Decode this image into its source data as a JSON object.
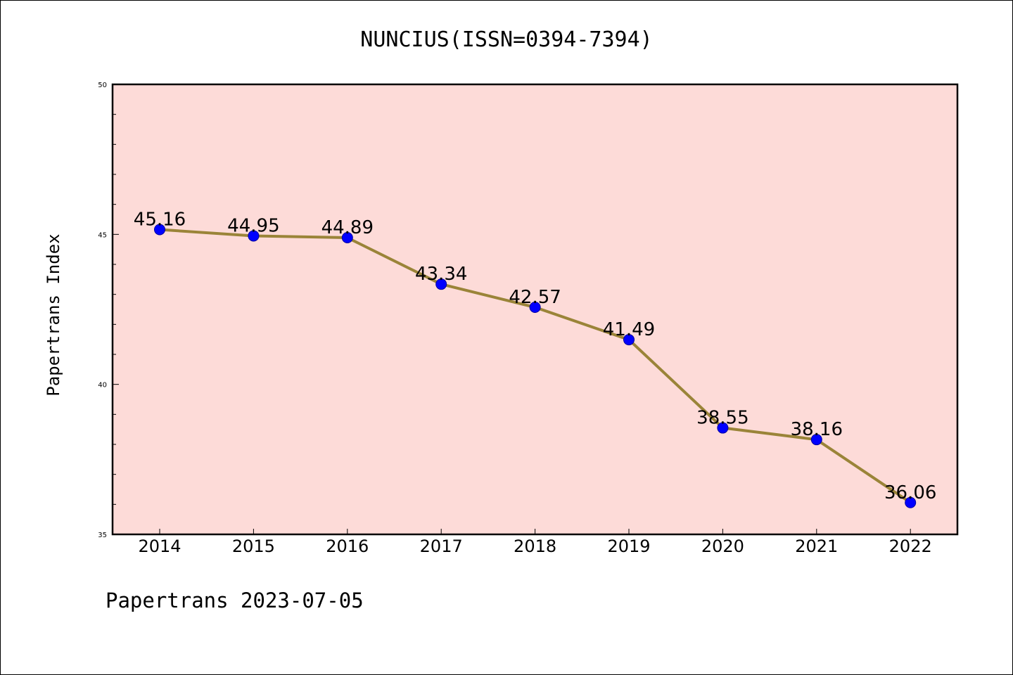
{
  "chart_data": {
    "type": "line",
    "title": "NUNCIUS(ISSN=0394-7394)",
    "xlabel": "",
    "ylabel": "Papertrans Index",
    "categories": [
      "2014",
      "2015",
      "2016",
      "2017",
      "2018",
      "2019",
      "2020",
      "2021",
      "2022"
    ],
    "series": [
      {
        "values": [
          45.16,
          44.95,
          44.89,
          43.34,
          42.57,
          41.49,
          38.55,
          38.16,
          36.06
        ]
      }
    ],
    "data_labels": [
      "45.16",
      "44.95",
      "44.89",
      "43.34",
      "42.57",
      "41.49",
      "38.55",
      "38.16",
      "36.06"
    ],
    "ylim": [
      35,
      50
    ],
    "yticks": [
      "35",
      "40",
      "45",
      "50"
    ],
    "grid": false,
    "legend": "none",
    "footer": "Papertrans 2023-07-05",
    "colors": {
      "plot_background": "#fddbd8",
      "line": "#9a8438",
      "marker": "#0000ff"
    }
  }
}
